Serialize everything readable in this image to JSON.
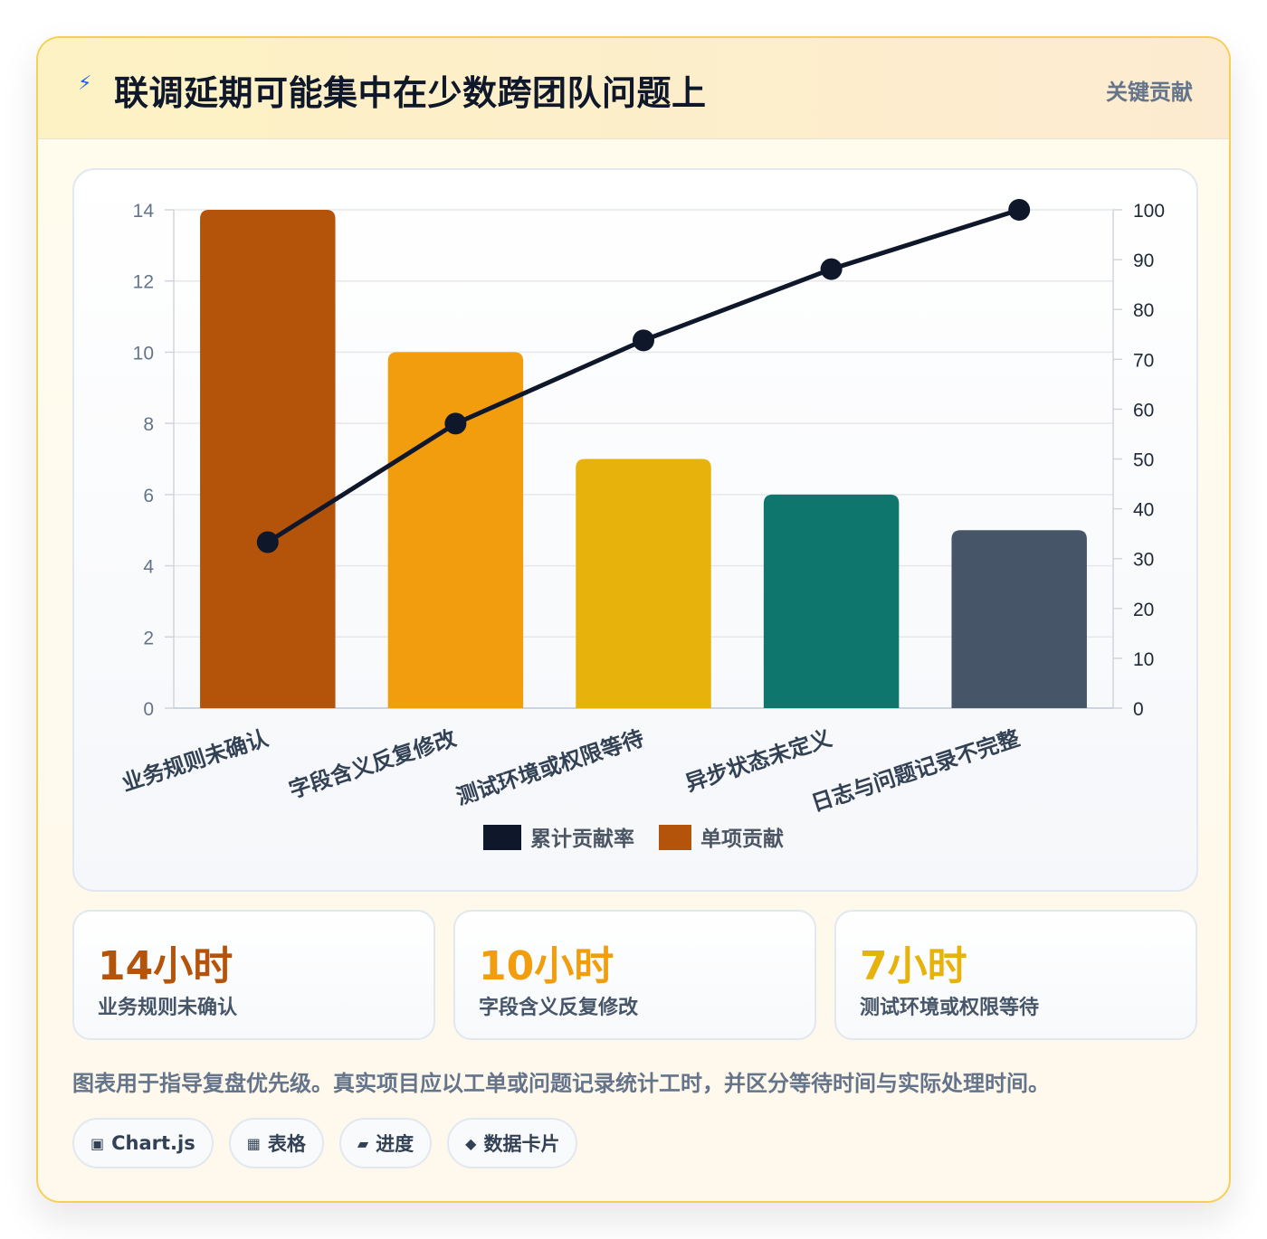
{
  "header": {
    "icon": "lightning-icon",
    "title": "联调延期可能集中在少数跨团队问题上",
    "badge": "关键贡献"
  },
  "chart_data": {
    "type": "bar",
    "categories": [
      "业务规则未确认",
      "字段含义反复修改",
      "测试环境或权限等待",
      "异步状态未定义",
      "日志与问题记录不完整"
    ],
    "series": [
      {
        "name": "单项贡献",
        "type": "bar",
        "axis": "left",
        "values": [
          14,
          10,
          7,
          6,
          5
        ],
        "colors": [
          "#b4530a",
          "#f29d0e",
          "#e6b20b",
          "#0f766e",
          "#475569"
        ]
      },
      {
        "name": "累计贡献率",
        "type": "line",
        "axis": "right",
        "values": [
          33.3,
          57.1,
          73.8,
          88.1,
          100
        ],
        "color": "#0f172a"
      }
    ],
    "y_left": {
      "min": 0,
      "max": 14,
      "ticks": [
        0,
        2,
        4,
        6,
        8,
        10,
        12,
        14
      ]
    },
    "y_right": {
      "min": 0,
      "max": 100,
      "ticks": [
        0,
        10,
        20,
        30,
        40,
        50,
        60,
        70,
        80,
        90,
        100
      ]
    },
    "legend": [
      {
        "label": "累计贡献率",
        "color": "#0f172a"
      },
      {
        "label": "单项贡献",
        "color": "#b4530a"
      }
    ],
    "legend_position": "bottom",
    "grid": true
  },
  "stats": [
    {
      "value": "14小时",
      "label": "业务规则未确认",
      "color": "#b4530a"
    },
    {
      "value": "10小时",
      "label": "字段含义反复修改",
      "color": "#f29d0e"
    },
    {
      "value": "7小时",
      "label": "测试环境或权限等待",
      "color": "#e6b20b"
    }
  ],
  "note": "图表用于指导复盘优先级。真实项目应以工单或问题记录统计工时，并区分等待时间与实际处理时间。",
  "tags": [
    {
      "icon": "square-icon",
      "glyph": "▣",
      "label": "Chart.js"
    },
    {
      "icon": "grid-icon",
      "glyph": "▦",
      "label": "表格"
    },
    {
      "icon": "progress-icon",
      "glyph": "▰",
      "label": "进度"
    },
    {
      "icon": "diamond-icon",
      "glyph": "◆",
      "label": "数据卡片"
    }
  ]
}
